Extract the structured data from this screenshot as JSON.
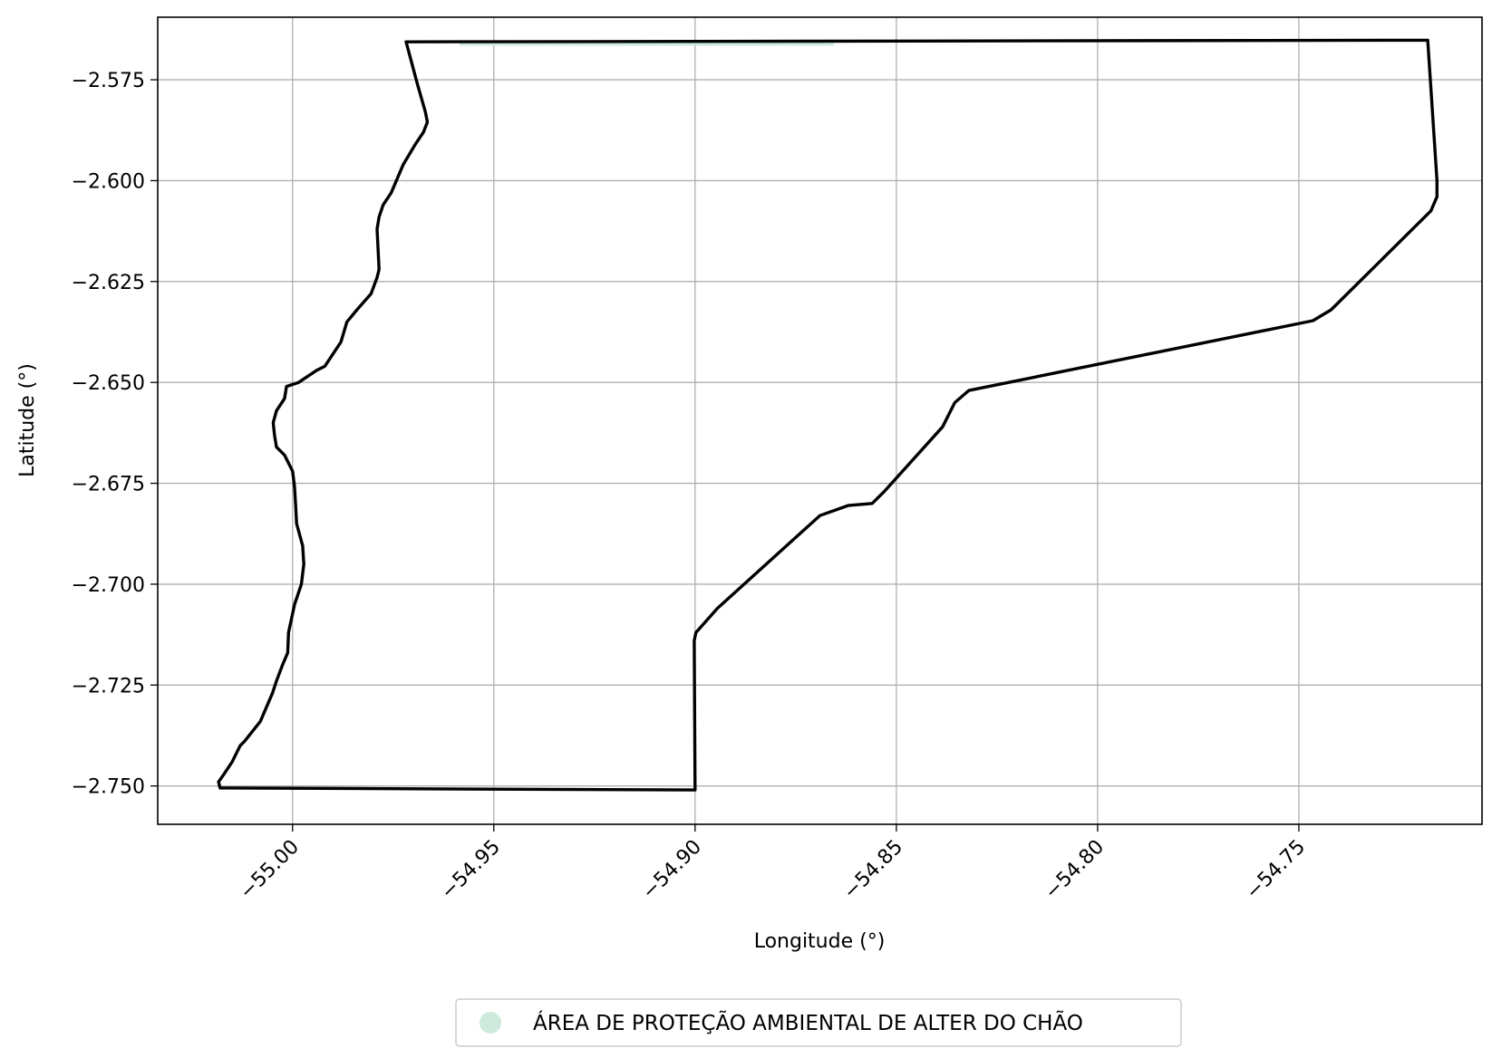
{
  "chart_data": {
    "type": "map",
    "xlabel": "Longitude (°)",
    "ylabel": "Latitude (°)",
    "xlim": [
      -55.0335,
      -54.7045
    ],
    "ylim": [
      -2.7595,
      -2.5595
    ],
    "x_ticks": [
      -55.0,
      -54.95,
      -54.9,
      -54.85,
      -54.8,
      -54.75
    ],
    "x_tick_labels": [
      "−55.00",
      "−54.95",
      "−54.90",
      "−54.85",
      "−54.80",
      "−54.75"
    ],
    "y_ticks": [
      -2.575,
      -2.6,
      -2.625,
      -2.65,
      -2.675,
      -2.7,
      -2.725,
      -2.75
    ],
    "y_tick_labels": [
      "−2.575",
      "−2.600",
      "−2.625",
      "−2.650",
      "−2.675",
      "−2.700",
      "−2.725",
      "−2.750"
    ],
    "grid": true,
    "legend": {
      "placement": "bottom-center",
      "entries": [
        {
          "label": "ÁREA DE PROTEÇÃO AMBIENTAL DE ALTER DO CHÃO",
          "color": "#cdeadc",
          "marker": "circle"
        }
      ]
    },
    "boundary": {
      "color": "#000000",
      "coords": [
        [
          -54.9718,
          -2.5656
        ],
        [
          -54.718,
          -2.5652
        ],
        [
          -54.7157,
          -2.6
        ],
        [
          -54.7157,
          -2.604
        ],
        [
          -54.7172,
          -2.6075
        ],
        [
          -54.742,
          -2.632
        ],
        [
          -54.7465,
          -2.6347
        ],
        [
          -54.832,
          -2.652
        ],
        [
          -54.8355,
          -2.655
        ],
        [
          -54.8385,
          -2.661
        ],
        [
          -54.853,
          -2.677
        ],
        [
          -54.856,
          -2.68
        ],
        [
          -54.862,
          -2.6805
        ],
        [
          -54.869,
          -2.683
        ],
        [
          -54.8945,
          -2.706
        ],
        [
          -54.8998,
          -2.712
        ],
        [
          -54.9002,
          -2.714
        ],
        [
          -54.9,
          -2.751
        ],
        [
          -55.018,
          -2.7505
        ],
        [
          -55.0184,
          -2.749
        ],
        [
          -55.017,
          -2.747
        ],
        [
          -55.015,
          -2.744
        ],
        [
          -55.013,
          -2.74
        ],
        [
          -55.012,
          -2.739
        ],
        [
          -55.008,
          -2.734
        ],
        [
          -55.005,
          -2.727
        ],
        [
          -55.004,
          -2.724
        ],
        [
          -55.0025,
          -2.72
        ],
        [
          -55.0012,
          -2.717
        ],
        [
          -55.001,
          -2.712
        ],
        [
          -54.9995,
          -2.705
        ],
        [
          -54.9978,
          -2.7
        ],
        [
          -54.9972,
          -2.695
        ],
        [
          -54.9975,
          -2.6905
        ],
        [
          -54.999,
          -2.685
        ],
        [
          -54.9992,
          -2.681
        ],
        [
          -54.9995,
          -2.676
        ],
        [
          -55.0,
          -2.672
        ],
        [
          -55.002,
          -2.668
        ],
        [
          -55.004,
          -2.666
        ],
        [
          -55.0045,
          -2.663
        ],
        [
          -55.0048,
          -2.66
        ],
        [
          -55.004,
          -2.657
        ],
        [
          -55.002,
          -2.654
        ],
        [
          -55.0015,
          -2.651
        ],
        [
          -54.9985,
          -2.65
        ],
        [
          -54.994,
          -2.647
        ],
        [
          -54.992,
          -2.646
        ],
        [
          -54.988,
          -2.64
        ],
        [
          -54.9865,
          -2.635
        ],
        [
          -54.984,
          -2.632
        ],
        [
          -54.9805,
          -2.628
        ],
        [
          -54.979,
          -2.624
        ],
        [
          -54.9785,
          -2.622
        ],
        [
          -54.979,
          -2.612
        ],
        [
          -54.9785,
          -2.609
        ],
        [
          -54.9775,
          -2.606
        ],
        [
          -54.9755,
          -2.603
        ],
        [
          -54.9725,
          -2.596
        ],
        [
          -54.9695,
          -2.591
        ],
        [
          -54.9675,
          -2.588
        ],
        [
          -54.9665,
          -2.5855
        ],
        [
          -54.967,
          -2.583
        ],
        [
          -54.969,
          -2.576
        ],
        [
          -54.9718,
          -2.5656
        ]
      ]
    },
    "area": {
      "color": "#cdeadc",
      "coords": [
        [
          -54.9585,
          -2.566
        ],
        [
          -54.8655,
          -2.566
        ]
      ]
    }
  }
}
